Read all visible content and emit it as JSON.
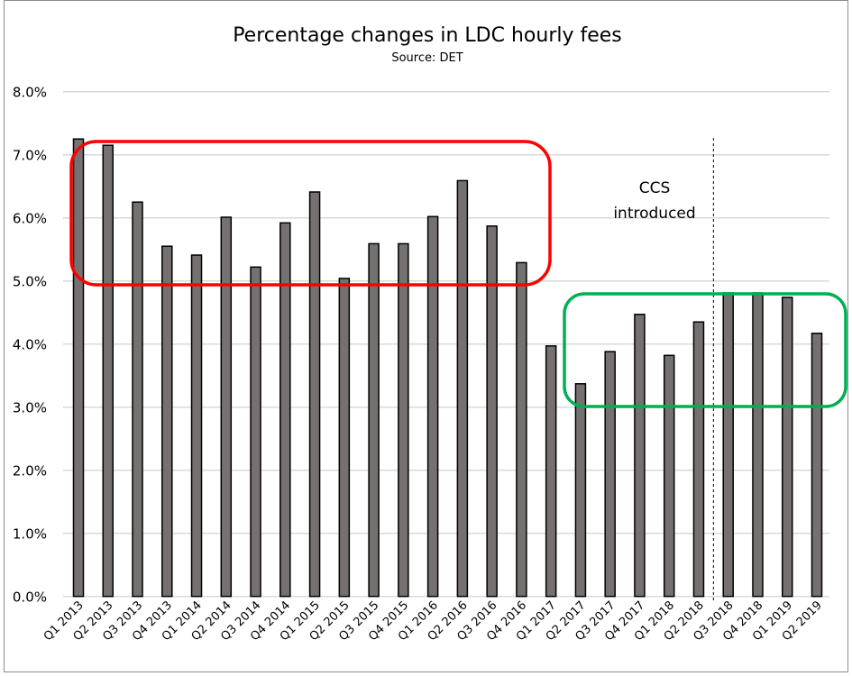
{
  "chart_data": {
    "type": "bar",
    "title": "Percentage changes in LDC hourly fees",
    "subtitle": "Source: DET",
    "xlabel": "",
    "ylabel": "",
    "ylim": [
      0,
      8
    ],
    "yticks": [
      "0.0%",
      "1.0%",
      "2.0%",
      "3.0%",
      "4.0%",
      "5.0%",
      "6.0%",
      "7.0%",
      "8.0%"
    ],
    "grid": true,
    "categories": [
      "Q1 2013",
      "Q2 2013",
      "Q3 2013",
      "Q4 2013",
      "Q1 2014",
      "Q2 2014",
      "Q3 2014",
      "Q4 2014",
      "Q1 2015",
      "Q2 2015",
      "Q3 2015",
      "Q4 2015",
      "Q1 2016",
      "Q2 2016",
      "Q3 2016",
      "Q4 2016",
      "Q1 2017",
      "Q2 2017",
      "Q3 2017",
      "Q4 2017",
      "Q1 2018",
      "Q2 2018",
      "Q3 2018",
      "Q4 2018",
      "Q1 2019",
      "Q2 2019"
    ],
    "values": [
      7.25,
      7.15,
      6.25,
      5.55,
      5.41,
      6.01,
      5.22,
      5.92,
      6.41,
      5.04,
      5.59,
      5.59,
      6.02,
      6.59,
      5.87,
      5.29,
      3.97,
      3.37,
      3.88,
      4.47,
      3.82,
      4.35,
      4.81,
      4.81,
      4.74,
      4.17
    ],
    "bar_color": "#757171",
    "annotations": {
      "ccs_text": [
        "CCS",
        "introduced"
      ],
      "ccs_line_between": [
        "Q2 2018",
        "Q3 2018"
      ],
      "red_box": {
        "from": "Q1 2013",
        "to": "Q4 2016",
        "color": "#ff0000"
      },
      "green_box": {
        "from": "Q2 2017",
        "to": "Q2 2019",
        "color": "#00b050"
      }
    }
  }
}
